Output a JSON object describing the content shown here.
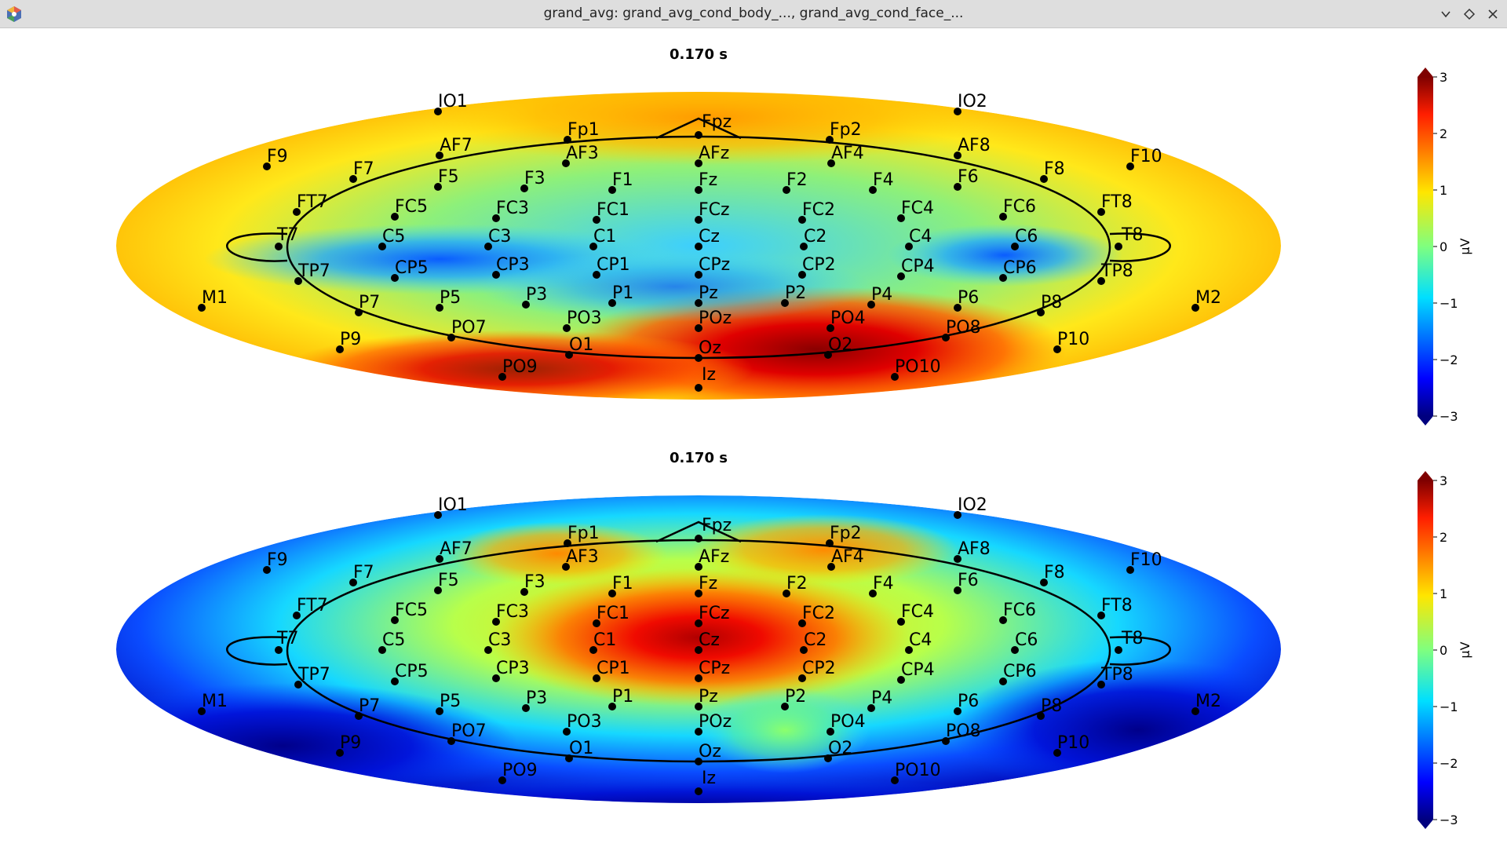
{
  "window": {
    "title": "grand_avg: grand_avg_cond_body_..., grand_avg_cond_face_...",
    "icons": [
      "app-logo-icon",
      "minimize-icon",
      "maximize-icon",
      "close-icon"
    ]
  },
  "plots": [
    {
      "title": "0.170 s",
      "colorbar": {
        "label": "µV",
        "ticks": [
          "3",
          "2",
          "1",
          "0",
          "−1",
          "−2",
          "−3"
        ],
        "range": [
          -3,
          3
        ],
        "colormap": "jet"
      }
    },
    {
      "title": "0.170 s",
      "colorbar": {
        "label": "µV",
        "ticks": [
          "3",
          "2",
          "1",
          "0",
          "−1",
          "−2",
          "−3"
        ],
        "range": [
          -3,
          3
        ],
        "colormap": "jet"
      }
    }
  ],
  "sensors": [
    "IO1",
    "IO2",
    "Fp1",
    "Fpz",
    "Fp2",
    "F9",
    "AF7",
    "AF3",
    "AFz",
    "AF4",
    "AF8",
    "F10",
    "F7",
    "F5",
    "F3",
    "F1",
    "Fz",
    "F2",
    "F4",
    "F6",
    "F8",
    "FT7",
    "FC5",
    "FC3",
    "FC1",
    "FCz",
    "FC2",
    "FC4",
    "FC6",
    "FT8",
    "T7",
    "C5",
    "C3",
    "C1",
    "Cz",
    "C2",
    "C4",
    "C6",
    "T8",
    "TP7",
    "CP5",
    "CP3",
    "CP1",
    "CPz",
    "CP2",
    "CP4",
    "CP6",
    "TP8",
    "M1",
    "P7",
    "P5",
    "P3",
    "P1",
    "Pz",
    "P2",
    "P4",
    "P6",
    "P8",
    "M2",
    "P9",
    "PO7",
    "PO3",
    "POz",
    "PO4",
    "PO8",
    "P10",
    "O1",
    "Oz",
    "O2",
    "PO9",
    "Iz",
    "PO10"
  ]
}
